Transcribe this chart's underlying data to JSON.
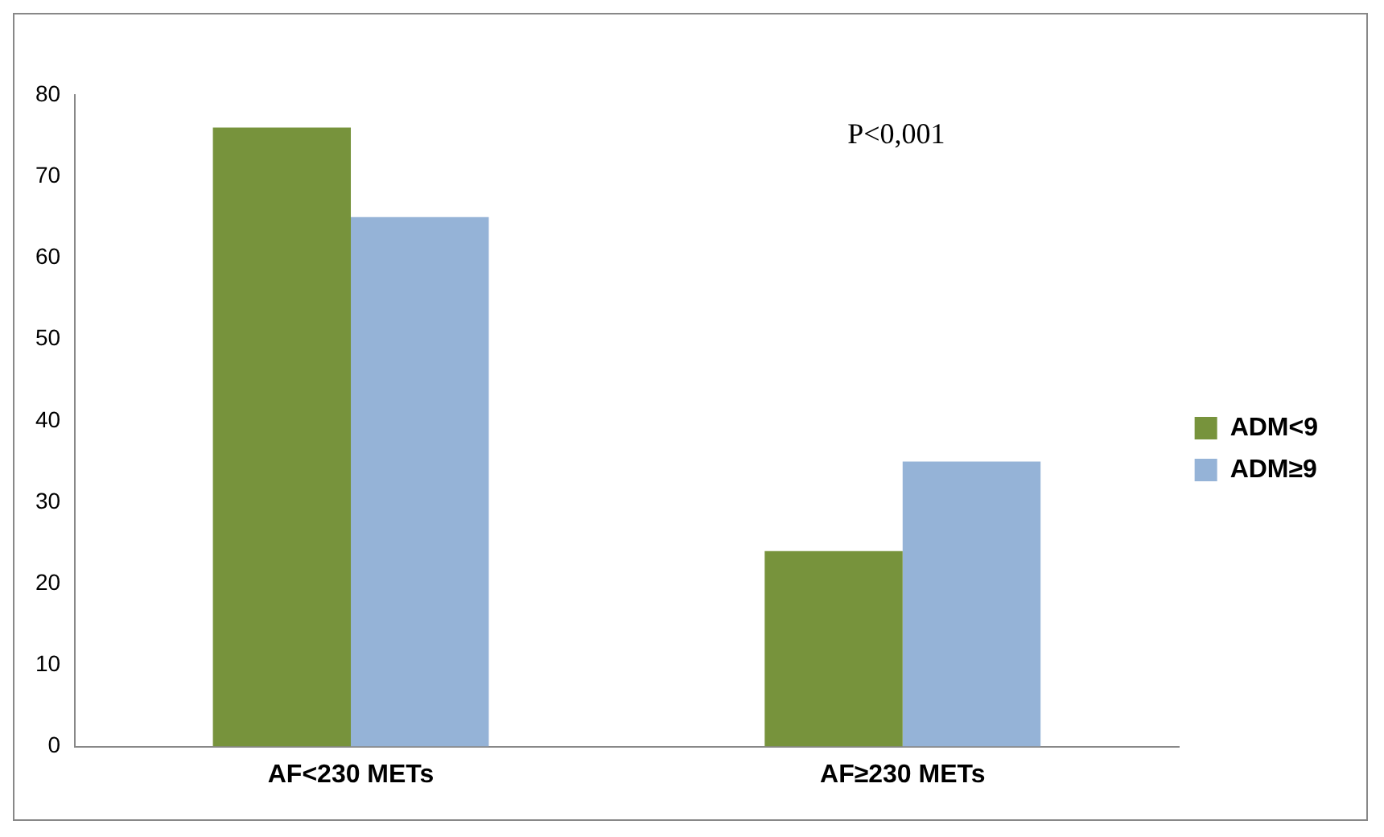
{
  "chart_data": {
    "type": "bar",
    "categories": [
      "AF<230 METs",
      "AF≥230 METs"
    ],
    "series": [
      {
        "name": "ADM<9",
        "color": "#77933c",
        "values": [
          76,
          24
        ]
      },
      {
        "name": "ADM≥9",
        "color": "#95b3d7",
        "values": [
          65,
          35
        ]
      }
    ],
    "ylim": [
      0,
      80
    ],
    "yticks": [
      0,
      10,
      20,
      30,
      40,
      50,
      60,
      70,
      80
    ],
    "grid": false,
    "legend": "right",
    "annotations": [
      "P<0,001"
    ]
  }
}
